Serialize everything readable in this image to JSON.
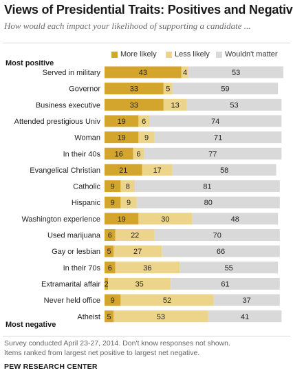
{
  "header": {
    "title": "Views of Presidential Traits: Positives and Negatives",
    "subtitle": "How would each impact your likelihood of supporting a candidate ..."
  },
  "labels": {
    "top": "Most positive",
    "bottom": "Most negative"
  },
  "colors": {
    "more": "#d4a52d",
    "less": "#ecd48a",
    "nomatter": "#d9d9d9"
  },
  "chart_data": {
    "type": "bar",
    "orientation": "horizontal",
    "stacked": true,
    "legend_position": "top",
    "categories": [
      "Served in military",
      "Governor",
      "Business executive",
      "Attended prestigious Univ",
      "Woman",
      "In their 40s",
      "Evangelical Christian",
      "Catholic",
      "Hispanic",
      "Washington experience",
      "Used marijuana",
      "Gay or lesbian",
      "In their 70s",
      "Extramarital affair",
      "Never held office",
      "Atheist"
    ],
    "series": [
      {
        "name": "More likely",
        "values": [
          43,
          33,
          33,
          19,
          19,
          16,
          21,
          9,
          9,
          19,
          6,
          5,
          6,
          2,
          9,
          5
        ]
      },
      {
        "name": "Less likely",
        "values": [
          4,
          5,
          13,
          6,
          9,
          6,
          17,
          8,
          9,
          30,
          22,
          27,
          36,
          35,
          52,
          53
        ]
      },
      {
        "name": "Wouldn't matter",
        "values": [
          53,
          59,
          53,
          74,
          71,
          77,
          58,
          81,
          80,
          48,
          70,
          66,
          55,
          61,
          37,
          41
        ]
      }
    ]
  },
  "footer": {
    "note1": "Survey conducted April 23-27, 2014.  Don't know responses not shown.",
    "note2": "Items ranked from largest net positive to largest net negative.",
    "source": "PEW RESEARCH CENTER"
  }
}
